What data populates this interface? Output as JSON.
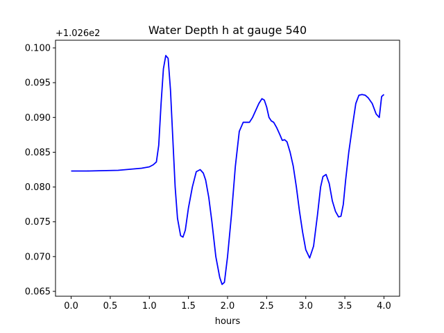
{
  "chart_data": {
    "type": "line",
    "title": "Water Depth h at gauge 540",
    "xlabel": "hours",
    "ylabel": "",
    "offset_label": "+1.026e2",
    "xlim": [
      -0.2,
      4.2
    ],
    "ylim": [
      0.0643,
      0.1011
    ],
    "grid": false,
    "x_ticks": [
      0.0,
      0.5,
      1.0,
      1.5,
      2.0,
      2.5,
      3.0,
      3.5,
      4.0
    ],
    "x_tick_labels": [
      "0.0",
      "0.5",
      "1.0",
      "1.5",
      "2.0",
      "2.5",
      "3.0",
      "3.5",
      "4.0"
    ],
    "y_ticks": [
      0.065,
      0.07,
      0.075,
      0.08,
      0.085,
      0.09,
      0.095,
      0.1
    ],
    "y_tick_labels": [
      "0.065",
      "0.070",
      "0.075",
      "0.080",
      "0.085",
      "0.090",
      "0.095",
      "0.100"
    ],
    "series": [
      {
        "color": "#0000ff",
        "x": [
          0.0,
          0.2,
          0.4,
          0.6,
          0.8,
          0.9,
          1.0,
          1.05,
          1.09,
          1.12,
          1.15,
          1.18,
          1.21,
          1.24,
          1.27,
          1.3,
          1.33,
          1.36,
          1.4,
          1.43,
          1.46,
          1.5,
          1.55,
          1.6,
          1.65,
          1.69,
          1.72,
          1.76,
          1.8,
          1.85,
          1.9,
          1.93,
          1.96,
          2.0,
          2.05,
          2.1,
          2.15,
          2.2,
          2.23,
          2.28,
          2.32,
          2.36,
          2.4,
          2.44,
          2.47,
          2.5,
          2.53,
          2.56,
          2.59,
          2.63,
          2.67,
          2.7,
          2.73,
          2.76,
          2.8,
          2.84,
          2.88,
          2.92,
          2.96,
          3.0,
          3.05,
          3.1,
          3.15,
          3.19,
          3.22,
          3.26,
          3.3,
          3.34,
          3.38,
          3.42,
          3.45,
          3.48,
          3.51,
          3.55,
          3.6,
          3.64,
          3.68,
          3.72,
          3.76,
          3.8,
          3.85,
          3.9,
          3.94,
          3.97,
          4.0
        ],
        "y": [
          0.0823,
          0.0823,
          0.08235,
          0.0824,
          0.0826,
          0.0827,
          0.0829,
          0.0832,
          0.0836,
          0.086,
          0.092,
          0.097,
          0.0989,
          0.0985,
          0.094,
          0.087,
          0.08,
          0.0755,
          0.073,
          0.0728,
          0.0738,
          0.077,
          0.08,
          0.0822,
          0.0825,
          0.082,
          0.081,
          0.0785,
          0.075,
          0.07,
          0.067,
          0.066,
          0.0663,
          0.07,
          0.076,
          0.083,
          0.088,
          0.0893,
          0.0893,
          0.0893,
          0.09,
          0.091,
          0.092,
          0.0927,
          0.0925,
          0.0915,
          0.09,
          0.0895,
          0.0893,
          0.0885,
          0.0875,
          0.0867,
          0.0868,
          0.0865,
          0.085,
          0.083,
          0.08,
          0.0765,
          0.0735,
          0.071,
          0.0698,
          0.0715,
          0.076,
          0.08,
          0.0815,
          0.0818,
          0.0805,
          0.078,
          0.0765,
          0.0757,
          0.0758,
          0.0775,
          0.081,
          0.085,
          0.089,
          0.092,
          0.0932,
          0.0933,
          0.0932,
          0.0928,
          0.092,
          0.0905,
          0.09,
          0.093,
          0.0933
        ]
      }
    ]
  }
}
